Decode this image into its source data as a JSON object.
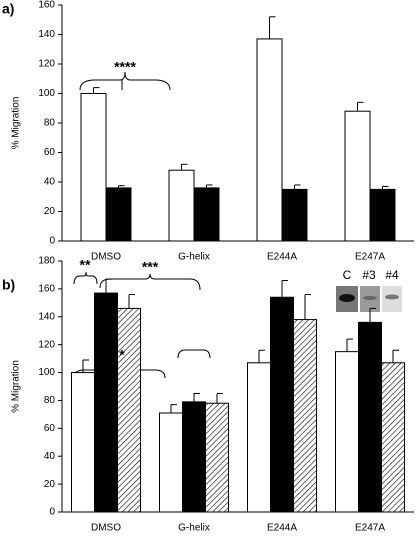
{
  "chart_data": [
    {
      "type": "bar",
      "panel_label": "a)",
      "ylabel": "% Migration",
      "categories": [
        "DMSO",
        "G-helix",
        "E244A",
        "E247A"
      ],
      "series": [
        {
          "color": "#ffffff",
          "values": [
            100,
            48,
            137,
            88
          ],
          "errors": [
            4,
            4,
            15,
            6
          ]
        },
        {
          "color": "#000000",
          "values": [
            36,
            36,
            35,
            35
          ],
          "errors": [
            1.5,
            2,
            3,
            2
          ]
        }
      ],
      "ylim": [
        0,
        160
      ],
      "yticks": [
        0,
        20,
        40,
        60,
        80,
        100,
        120,
        140,
        160
      ],
      "annotations": [
        "****"
      ]
    },
    {
      "type": "bar",
      "panel_label": "b)",
      "ylabel": "% Migration",
      "categories": [
        "DMSO",
        "G-helix",
        "E244A",
        "E247A"
      ],
      "series": [
        {
          "color": "#ffffff",
          "values": [
            100,
            71,
            107,
            115
          ],
          "errors": [
            9,
            6,
            9,
            9
          ]
        },
        {
          "color": "#000000",
          "values": [
            157,
            79,
            154,
            136
          ],
          "errors": [
            10,
            6,
            12,
            10
          ]
        },
        {
          "color": "#ffffff",
          "pattern": "hatch",
          "values": [
            146,
            78,
            138,
            107
          ],
          "errors": [
            10,
            7,
            18,
            9
          ]
        }
      ],
      "ylim": [
        0,
        180
      ],
      "yticks": [
        0,
        20,
        40,
        60,
        80,
        100,
        120,
        140,
        160,
        180
      ],
      "annotations": [
        "**",
        "***",
        "*"
      ],
      "inset_labels": [
        "C",
        "#3",
        "#4"
      ]
    }
  ]
}
